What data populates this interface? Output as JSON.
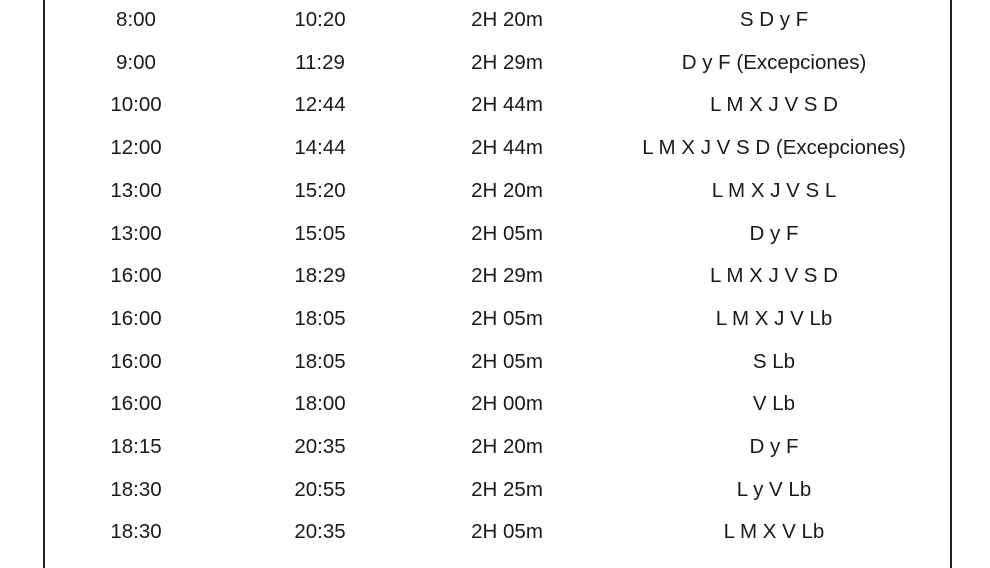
{
  "table": {
    "rows": [
      [
        "8:00",
        "10:20",
        "2H 20m",
        "S D y F"
      ],
      [
        "9:00",
        "11:29",
        "2H 29m",
        "D y F (Excepciones)"
      ],
      [
        "10:00",
        "12:44",
        "2H 44m",
        "L M X J V S D"
      ],
      [
        "12:00",
        "14:44",
        "2H 44m",
        "L M X J V S D (Excepciones)"
      ],
      [
        "13:00",
        "15:20",
        "2H 20m",
        "L M X J V S L"
      ],
      [
        "13:00",
        "15:05",
        "2H 05m",
        "D y F"
      ],
      [
        "16:00",
        "18:29",
        "2H 29m",
        "L M X J V S D"
      ],
      [
        "16:00",
        "18:05",
        "2H 05m",
        "L M X J V Lb"
      ],
      [
        "16:00",
        "18:05",
        "2H 05m",
        "S Lb"
      ],
      [
        "16:00",
        "18:00",
        "2H 00m",
        "V Lb"
      ],
      [
        "18:15",
        "20:35",
        "2H 20m",
        "D y F"
      ],
      [
        "18:30",
        "20:55",
        "2H 25m",
        "L y V Lb"
      ],
      [
        "18:30",
        "20:35",
        "2H 05m",
        "L M X V Lb"
      ]
    ]
  }
}
